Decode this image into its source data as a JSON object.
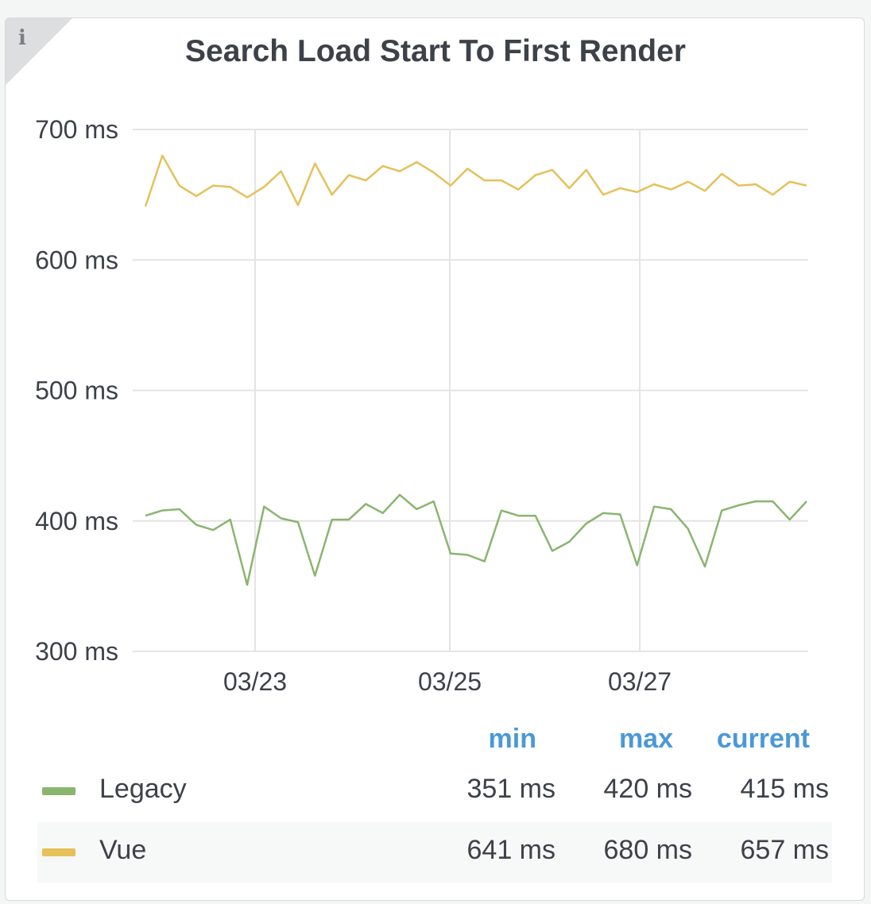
{
  "panel": {
    "title": "Search Load Start To First Render",
    "info_icon": "i"
  },
  "legend": {
    "headers": {
      "min": "min",
      "max": "max",
      "current": "current"
    },
    "rows": [
      {
        "name": "Legacy",
        "color": "#8ab56f",
        "min": "351 ms",
        "max": "420 ms",
        "current": "415 ms"
      },
      {
        "name": "Vue",
        "color": "#e5c15a",
        "min": "641 ms",
        "max": "680 ms",
        "current": "657 ms"
      }
    ]
  },
  "chart_data": {
    "type": "line",
    "x_start": "03/21 12:00",
    "x_end": "03/28 18:00",
    "x_ticks": [
      "03/23",
      "03/25",
      "03/27"
    ],
    "y_ticks": [
      "300 ms",
      "400 ms",
      "500 ms",
      "600 ms",
      "700 ms"
    ],
    "ylim": [
      300,
      700
    ],
    "unit": "ms",
    "grid": true,
    "series": [
      {
        "name": "Legacy",
        "color": "#8ab56f",
        "values": [
          404,
          408,
          409,
          397,
          393,
          401,
          351,
          411,
          402,
          399,
          358,
          401,
          401,
          413,
          406,
          420,
          409,
          415,
          375,
          374,
          369,
          408,
          404,
          404,
          377,
          384,
          398,
          406,
          405,
          366,
          411,
          409,
          394,
          365,
          408,
          412,
          415,
          415,
          401,
          415
        ]
      },
      {
        "name": "Vue",
        "color": "#e5c15a",
        "values": [
          641,
          680,
          657,
          649,
          657,
          656,
          648,
          656,
          668,
          642,
          674,
          650,
          665,
          661,
          672,
          668,
          675,
          667,
          657,
          670,
          661,
          661,
          654,
          665,
          669,
          655,
          669,
          650,
          655,
          652,
          658,
          654,
          660,
          653,
          666,
          657,
          658,
          650,
          660,
          657
        ]
      }
    ]
  }
}
